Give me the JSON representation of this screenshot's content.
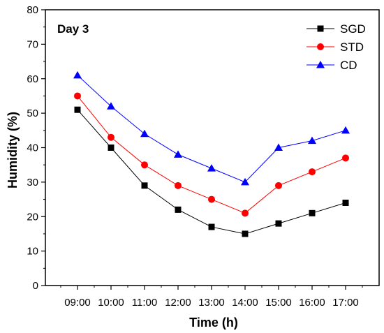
{
  "chart_data": {
    "type": "line",
    "annotation": "Day 3",
    "xlabel": "Time (h)",
    "ylabel": "Humidity (%)",
    "categories": [
      "09:00",
      "10:00",
      "11:00",
      "12:00",
      "13:00",
      "14:00",
      "15:00",
      "16:00",
      "17:00"
    ],
    "ylim": [
      0,
      80
    ],
    "yticks": [
      0,
      10,
      20,
      30,
      40,
      50,
      60,
      70,
      80
    ],
    "grid": false,
    "legend_position": "top-right",
    "series": [
      {
        "name": "SGD",
        "color": "#000000",
        "marker": "square",
        "values": [
          51,
          40,
          29,
          22,
          17,
          15,
          18,
          21,
          24
        ]
      },
      {
        "name": "STD",
        "color": "#ff0000",
        "marker": "circle",
        "values": [
          55,
          43,
          35,
          29,
          25,
          21,
          29,
          33,
          37
        ]
      },
      {
        "name": "CD",
        "color": "#0000ff",
        "marker": "triangle",
        "values": [
          61,
          52,
          44,
          38,
          34,
          30,
          40,
          42,
          45
        ]
      }
    ]
  }
}
